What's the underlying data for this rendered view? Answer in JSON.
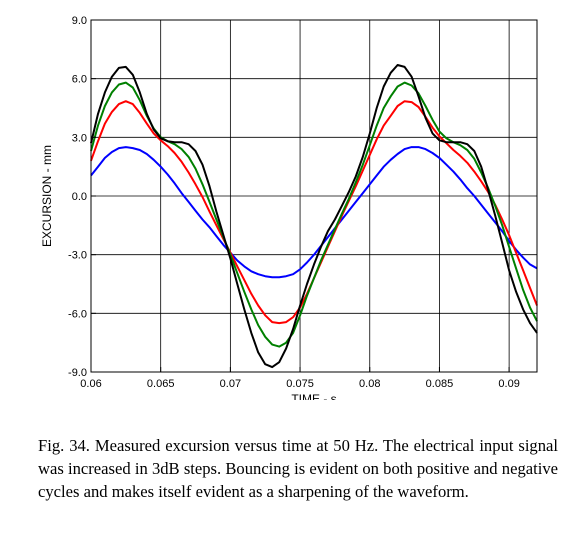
{
  "chart_data": {
    "type": "line",
    "title": "",
    "xlabel": "TIME - s",
    "ylabel": "EXCURSION - mm",
    "xlim": [
      0.06,
      0.092
    ],
    "ylim": [
      -9.0,
      9.0
    ],
    "x_ticks": [
      0.06,
      0.065,
      0.07,
      0.075,
      0.08,
      0.085,
      0.09
    ],
    "x_tick_labels": [
      "0.06",
      "0.065",
      "0.07",
      "0.075",
      "0.08",
      "0.085",
      "0.09"
    ],
    "y_ticks": [
      9.0,
      6.0,
      3.0,
      0.0,
      -3.0,
      -6.0,
      -9.0
    ],
    "y_tick_labels": [
      "9.0",
      "6.0",
      "3.0",
      "0.0",
      "-3.0",
      "-6.0",
      "-9.0"
    ],
    "grid": true,
    "legend": "none",
    "series": [
      {
        "color": "#0000ff",
        "x": [
          0.06,
          0.0605,
          0.061,
          0.0615,
          0.062,
          0.0625,
          0.063,
          0.0635,
          0.064,
          0.0645,
          0.065,
          0.0655,
          0.066,
          0.0665,
          0.067,
          0.0675,
          0.068,
          0.0685,
          0.069,
          0.0695,
          0.07,
          0.0705,
          0.071,
          0.0715,
          0.072,
          0.0725,
          0.073,
          0.0735,
          0.074,
          0.0745,
          0.075,
          0.0755,
          0.076,
          0.0765,
          0.077,
          0.0775,
          0.078,
          0.0785,
          0.079,
          0.0795,
          0.08,
          0.0805,
          0.081,
          0.0815,
          0.082,
          0.0825,
          0.083,
          0.0835,
          0.084,
          0.0845,
          0.085,
          0.0855,
          0.086,
          0.0865,
          0.087,
          0.0875,
          0.088,
          0.0885,
          0.089,
          0.0895,
          0.09,
          0.0905,
          0.091,
          0.0915,
          0.092
        ],
        "y": [
          1.05,
          1.5,
          1.95,
          2.25,
          2.45,
          2.5,
          2.45,
          2.35,
          2.15,
          1.85,
          1.5,
          1.1,
          0.65,
          0.15,
          -0.3,
          -0.75,
          -1.2,
          -1.6,
          -2.05,
          -2.5,
          -2.9,
          -3.3,
          -3.6,
          -3.85,
          -4.0,
          -4.1,
          -4.15,
          -4.15,
          -4.1,
          -4.0,
          -3.75,
          -3.4,
          -3.0,
          -2.55,
          -2.1,
          -1.65,
          -1.2,
          -0.75,
          -0.3,
          0.15,
          0.6,
          1.05,
          1.5,
          1.85,
          2.15,
          2.4,
          2.5,
          2.5,
          2.4,
          2.2,
          1.95,
          1.6,
          1.25,
          0.85,
          0.4,
          0.0,
          -0.45,
          -0.9,
          -1.35,
          -1.8,
          -2.3,
          -2.75,
          -3.15,
          -3.5,
          -3.7
        ]
      },
      {
        "color": "#ff0000",
        "x": [
          0.06,
          0.0605,
          0.061,
          0.0615,
          0.062,
          0.0625,
          0.063,
          0.0635,
          0.064,
          0.0645,
          0.065,
          0.0655,
          0.066,
          0.0665,
          0.067,
          0.0675,
          0.068,
          0.0685,
          0.069,
          0.0695,
          0.07,
          0.0705,
          0.071,
          0.0715,
          0.072,
          0.0725,
          0.073,
          0.0735,
          0.074,
          0.0745,
          0.075,
          0.0755,
          0.076,
          0.0765,
          0.077,
          0.0775,
          0.078,
          0.0785,
          0.079,
          0.0795,
          0.08,
          0.0805,
          0.081,
          0.0815,
          0.082,
          0.0825,
          0.083,
          0.0835,
          0.084,
          0.0845,
          0.085,
          0.0855,
          0.086,
          0.0865,
          0.087,
          0.0875,
          0.088,
          0.0885,
          0.089,
          0.0895,
          0.09,
          0.0905,
          0.091,
          0.0915,
          0.092
        ],
        "y": [
          1.8,
          2.8,
          3.7,
          4.3,
          4.7,
          4.85,
          4.7,
          4.25,
          3.7,
          3.2,
          2.85,
          2.55,
          2.2,
          1.75,
          1.2,
          0.6,
          -0.05,
          -0.8,
          -1.5,
          -2.2,
          -2.9,
          -3.6,
          -4.3,
          -5.0,
          -5.6,
          -6.1,
          -6.45,
          -6.5,
          -6.45,
          -6.2,
          -5.7,
          -5.0,
          -4.2,
          -3.4,
          -2.6,
          -1.8,
          -1.0,
          -0.25,
          0.5,
          1.3,
          2.1,
          2.9,
          3.6,
          4.1,
          4.6,
          4.85,
          4.8,
          4.55,
          4.05,
          3.5,
          3.05,
          2.7,
          2.35,
          2.05,
          1.7,
          1.25,
          0.75,
          0.2,
          -0.45,
          -1.2,
          -2.0,
          -2.9,
          -3.8,
          -4.7,
          -5.6
        ]
      },
      {
        "color": "#008000",
        "x": [
          0.06,
          0.0605,
          0.061,
          0.0615,
          0.062,
          0.0625,
          0.063,
          0.0635,
          0.064,
          0.0645,
          0.065,
          0.0655,
          0.066,
          0.0665,
          0.067,
          0.0675,
          0.068,
          0.0685,
          0.069,
          0.0695,
          0.07,
          0.0705,
          0.071,
          0.0715,
          0.072,
          0.0725,
          0.073,
          0.0735,
          0.074,
          0.0745,
          0.075,
          0.0755,
          0.076,
          0.0765,
          0.077,
          0.0775,
          0.078,
          0.0785,
          0.079,
          0.0795,
          0.08,
          0.0805,
          0.081,
          0.0815,
          0.082,
          0.0825,
          0.083,
          0.0835,
          0.084,
          0.0845,
          0.085,
          0.0855,
          0.086,
          0.0865,
          0.087,
          0.0875,
          0.088,
          0.0885,
          0.089,
          0.0895,
          0.09,
          0.0905,
          0.091,
          0.0915,
          0.092
        ],
        "y": [
          2.3,
          3.6,
          4.6,
          5.3,
          5.7,
          5.8,
          5.55,
          4.9,
          4.1,
          3.45,
          3.0,
          2.8,
          2.65,
          2.4,
          2.0,
          1.4,
          0.6,
          -0.3,
          -1.2,
          -2.1,
          -3.0,
          -3.95,
          -4.9,
          -5.8,
          -6.6,
          -7.2,
          -7.6,
          -7.7,
          -7.5,
          -7.0,
          -6.1,
          -5.1,
          -4.2,
          -3.3,
          -2.5,
          -1.7,
          -0.9,
          -0.15,
          0.7,
          1.6,
          2.6,
          3.6,
          4.5,
          5.1,
          5.6,
          5.8,
          5.65,
          5.25,
          4.6,
          3.9,
          3.3,
          2.95,
          2.75,
          2.6,
          2.35,
          1.9,
          1.2,
          0.4,
          -0.5,
          -1.5,
          -2.6,
          -3.7,
          -4.8,
          -5.7,
          -6.4
        ]
      },
      {
        "color": "#000000",
        "x": [
          0.06,
          0.0605,
          0.061,
          0.0615,
          0.062,
          0.0625,
          0.063,
          0.0635,
          0.064,
          0.0645,
          0.065,
          0.0655,
          0.066,
          0.0665,
          0.067,
          0.0675,
          0.068,
          0.0685,
          0.069,
          0.0695,
          0.07,
          0.0705,
          0.071,
          0.0715,
          0.072,
          0.0725,
          0.073,
          0.0735,
          0.074,
          0.0745,
          0.075,
          0.0755,
          0.076,
          0.0765,
          0.077,
          0.0775,
          0.078,
          0.0785,
          0.079,
          0.0795,
          0.08,
          0.0805,
          0.081,
          0.0815,
          0.082,
          0.0825,
          0.083,
          0.0835,
          0.084,
          0.0845,
          0.085,
          0.0855,
          0.086,
          0.0865,
          0.087,
          0.0875,
          0.088,
          0.0885,
          0.089,
          0.0895,
          0.09,
          0.0905,
          0.091,
          0.0915,
          0.092
        ],
        "y": [
          2.7,
          4.2,
          5.3,
          6.1,
          6.55,
          6.6,
          6.2,
          5.3,
          4.2,
          3.4,
          2.95,
          2.8,
          2.75,
          2.75,
          2.65,
          2.3,
          1.6,
          0.5,
          -0.8,
          -2.0,
          -3.2,
          -4.5,
          -5.8,
          -7.0,
          -8.0,
          -8.6,
          -8.75,
          -8.5,
          -7.8,
          -6.8,
          -5.6,
          -4.5,
          -3.5,
          -2.6,
          -1.8,
          -1.2,
          -0.5,
          0.2,
          1.0,
          2.0,
          3.2,
          4.5,
          5.6,
          6.3,
          6.7,
          6.6,
          6.1,
          5.1,
          4.0,
          3.2,
          2.85,
          2.75,
          2.75,
          2.75,
          2.65,
          2.3,
          1.5,
          0.3,
          -1.0,
          -2.4,
          -3.8,
          -4.9,
          -5.8,
          -6.5,
          -7.0
        ]
      }
    ]
  },
  "caption": "Fig. 34. Measured excursion versus time at 50 Hz. The electrical input signal was increased in 3dB steps. Bouncing is evident on both positive and negative cycles and makes itself evident as a sharpening of the waveform."
}
